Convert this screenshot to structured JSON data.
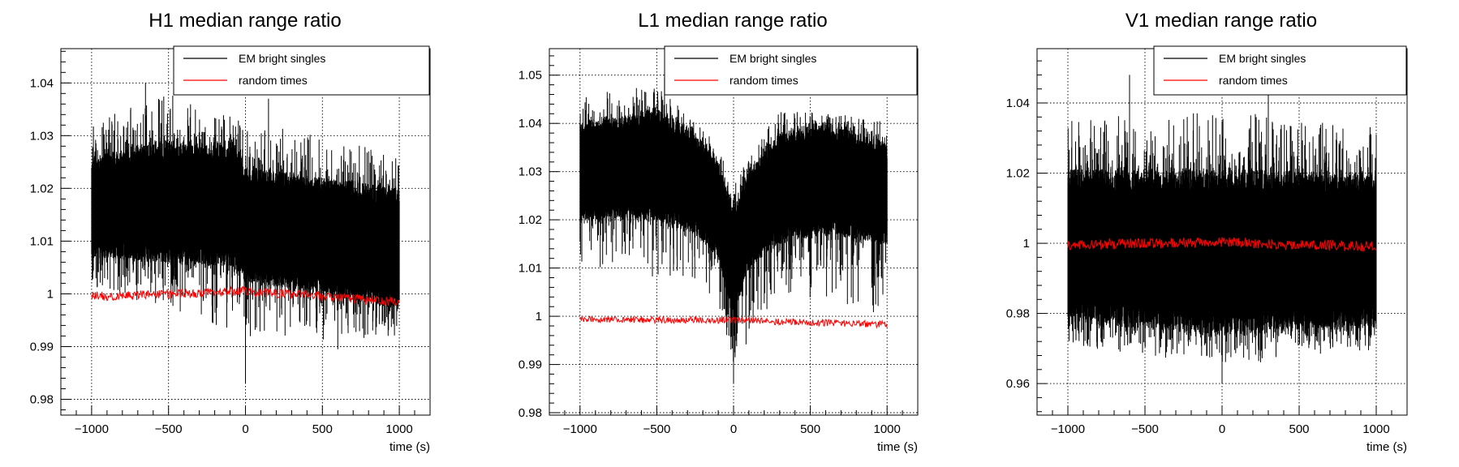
{
  "chart_data": [
    {
      "type": "line",
      "title": "H1 median range ratio",
      "xlabel": "time (s)",
      "ylabel": "",
      "xlim": [
        -1200,
        1200
      ],
      "ylim": [
        0.977,
        1.0465
      ],
      "xticks": [
        -1000,
        -500,
        0,
        500,
        1000
      ],
      "xtick_labels": [
        "−1000",
        "−500",
        "0",
        "500",
        "1000"
      ],
      "yticks": [
        0.98,
        0.99,
        1.0,
        1.01,
        1.02,
        1.03,
        1.04
      ],
      "ytick_labels": [
        "0.98",
        "0.99",
        "1",
        "1.01",
        "1.02",
        "1.03",
        "1.04"
      ],
      "grid": true,
      "legend_position": "top-right",
      "series": [
        {
          "name": "EM bright singles",
          "color": "#000000",
          "x_range": [
            -1000,
            1000
          ],
          "band_low": [
            [
              -1000,
              1.007
            ],
            [
              -500,
              1.006
            ],
            [
              -50,
              1.005
            ],
            [
              0,
              1.002
            ],
            [
              500,
              1.0
            ],
            [
              1000,
              0.997
            ]
          ],
          "band_high": [
            [
              -1000,
              1.026
            ],
            [
              -500,
              1.029
            ],
            [
              -50,
              1.028
            ],
            [
              0,
              1.024
            ],
            [
              500,
              1.022
            ],
            [
              1000,
              1.02
            ]
          ],
          "spike_max": [
            [
              -1000,
              1.033
            ],
            [
              -500,
              1.038
            ],
            [
              0,
              1.033
            ],
            [
              500,
              1.03
            ],
            [
              1000,
              1.027
            ]
          ],
          "spike_min": [
            [
              -1000,
              1.001
            ],
            [
              -500,
              0.997
            ],
            [
              0,
              0.992
            ],
            [
              500,
              0.991
            ],
            [
              1000,
              0.992
            ]
          ],
          "peaks": [
            [
              -650,
              1.04
            ],
            [
              0,
              0.983
            ],
            [
              150,
              1.037
            ],
            [
              600,
              0.9895
            ]
          ]
        },
        {
          "name": "random times",
          "color": "#ff0000",
          "x_range": [
            -1000,
            1000
          ],
          "center": [
            [
              -1000,
              0.9995
            ],
            [
              0,
              1.0005
            ],
            [
              1000,
              0.9985
            ]
          ],
          "amplitude": 0.0009
        }
      ]
    },
    {
      "type": "line",
      "title": "L1 median range ratio",
      "xlabel": "time (s)",
      "ylabel": "",
      "xlim": [
        -1200,
        1200
      ],
      "ylim": [
        0.9795,
        1.0555
      ],
      "xticks": [
        -1000,
        -500,
        0,
        500,
        1000
      ],
      "xtick_labels": [
        "−1000",
        "−500",
        "0",
        "500",
        "1000"
      ],
      "yticks": [
        0.98,
        0.99,
        1.0,
        1.01,
        1.02,
        1.03,
        1.04,
        1.05
      ],
      "ytick_labels": [
        "0.98",
        "0.99",
        "1",
        "1.01",
        "1.02",
        "1.03",
        "1.04",
        "1.05"
      ],
      "grid": true,
      "legend_position": "top-right",
      "series": [
        {
          "name": "EM bright singles",
          "color": "#000000",
          "x_range": [
            -1000,
            1000
          ],
          "band_low": [
            [
              -1000,
              1.02
            ],
            [
              -500,
              1.02
            ],
            [
              -250,
              1.017
            ],
            [
              -100,
              1.012
            ],
            [
              0,
              1.0
            ],
            [
              100,
              1.01
            ],
            [
              300,
              1.015
            ],
            [
              600,
              1.017
            ],
            [
              1000,
              1.015
            ]
          ],
          "band_high": [
            [
              -1000,
              1.04
            ],
            [
              -500,
              1.043
            ],
            [
              -250,
              1.038
            ],
            [
              -100,
              1.032
            ],
            [
              0,
              1.022
            ],
            [
              100,
              1.03
            ],
            [
              300,
              1.038
            ],
            [
              600,
              1.04
            ],
            [
              1000,
              1.036
            ]
          ],
          "spike_max": [
            [
              -1000,
              1.046
            ],
            [
              -500,
              1.048
            ],
            [
              -100,
              1.036
            ],
            [
              0,
              1.028
            ],
            [
              300,
              1.043
            ],
            [
              1000,
              1.041
            ]
          ],
          "spike_min": [
            [
              -1000,
              1.01
            ],
            [
              -500,
              1.008
            ],
            [
              -100,
              1.001
            ],
            [
              0,
              0.99
            ],
            [
              300,
              1.005
            ],
            [
              1000,
              1.0
            ]
          ],
          "peaks": [
            [
              -450,
              1.0495
            ],
            [
              0,
              0.986
            ],
            [
              10,
              0.9915
            ]
          ]
        },
        {
          "name": "random times",
          "color": "#ff0000",
          "x_range": [
            -1000,
            1000
          ],
          "center": [
            [
              -1000,
              0.9993
            ],
            [
              0,
              0.9992
            ],
            [
              1000,
              0.9983
            ]
          ],
          "amplitude": 0.0007
        }
      ]
    },
    {
      "type": "line",
      "title": "V1 median range ratio",
      "xlabel": "time (s)",
      "ylabel": "",
      "xlim": [
        -1200,
        1200
      ],
      "ylim": [
        0.951,
        1.0555
      ],
      "xticks": [
        -1000,
        -500,
        0,
        500,
        1000
      ],
      "xtick_labels": [
        "−1000",
        "−500",
        "0",
        "500",
        "1000"
      ],
      "yticks": [
        0.96,
        0.98,
        1.0,
        1.02,
        1.04
      ],
      "ytick_labels": [
        "0.96",
        "0.98",
        "1",
        "1.02",
        "1.04"
      ],
      "grid": true,
      "legend_position": "top-right",
      "series": [
        {
          "name": "EM bright singles",
          "color": "#000000",
          "x_range": [
            -1000,
            1000
          ],
          "band_low": [
            [
              -1000,
              0.978
            ],
            [
              0,
              0.974
            ],
            [
              1000,
              0.976
            ]
          ],
          "band_high": [
            [
              -1000,
              1.021
            ],
            [
              0,
              1.021
            ],
            [
              1000,
              1.02
            ]
          ],
          "spike_max": [
            [
              -1000,
              1.036
            ],
            [
              0,
              1.038
            ],
            [
              1000,
              1.034
            ]
          ],
          "spike_min": [
            [
              -1000,
              0.971
            ],
            [
              0,
              0.965
            ],
            [
              1000,
              0.969
            ]
          ],
          "peaks": [
            [
              -600,
              1.048
            ],
            [
              0,
              0.96
            ],
            [
              300,
              1.044
            ]
          ]
        },
        {
          "name": "random times",
          "color": "#ff0000",
          "x_range": [
            -1000,
            1000
          ],
          "center": [
            [
              -1000,
              0.9995
            ],
            [
              0,
              1.0003
            ],
            [
              1000,
              0.999
            ]
          ],
          "amplitude": 0.0015
        }
      ]
    }
  ]
}
